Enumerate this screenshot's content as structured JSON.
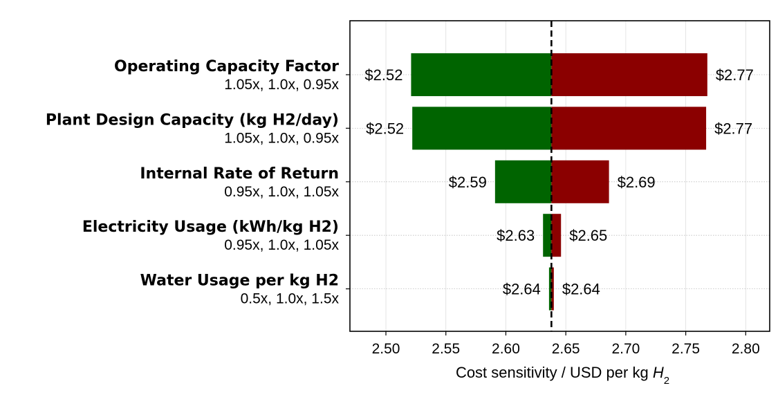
{
  "chart_data": {
    "type": "bar",
    "orientation": "horizontal",
    "title": "",
    "xlabel": "Cost sensitivity / USD per kg",
    "xlabel_math": "H",
    "xlabel_math_sub": "2",
    "ylabel": "",
    "xlim": [
      2.47,
      2.82
    ],
    "xticks": [
      2.5,
      2.55,
      2.6,
      2.65,
      2.7,
      2.75,
      2.8
    ],
    "xtick_labels": [
      "2.50",
      "2.55",
      "2.60",
      "2.65",
      "2.70",
      "2.75",
      "2.80"
    ],
    "baseline": 2.638,
    "grid": true,
    "low_color": "#006400",
    "high_color": "#8b0000",
    "parameters": [
      {
        "name": "Operating Capacity Factor",
        "multipliers": "1.05x, 1.0x, 0.95x",
        "low": 2.521,
        "high": 2.768,
        "low_label": "$2.52",
        "high_label": "$2.77"
      },
      {
        "name": "Plant Design Capacity (kg H2/day)",
        "multipliers": "1.05x, 1.0x, 0.95x",
        "low": 2.522,
        "high": 2.767,
        "low_label": "$2.52",
        "high_label": "$2.77"
      },
      {
        "name": "Internal Rate of Return",
        "multipliers": "0.95x, 1.0x, 1.05x",
        "low": 2.591,
        "high": 2.686,
        "low_label": "$2.59",
        "high_label": "$2.69"
      },
      {
        "name": "Electricity Usage (kWh/kg H2)",
        "multipliers": "0.95x, 1.0x, 1.05x",
        "low": 2.631,
        "high": 2.646,
        "low_label": "$2.63",
        "high_label": "$2.65"
      },
      {
        "name": "Water Usage per kg H2",
        "multipliers": "0.5x, 1.0x, 1.5x",
        "low": 2.636,
        "high": 2.64,
        "low_label": "$2.64",
        "high_label": "$2.64"
      }
    ]
  }
}
